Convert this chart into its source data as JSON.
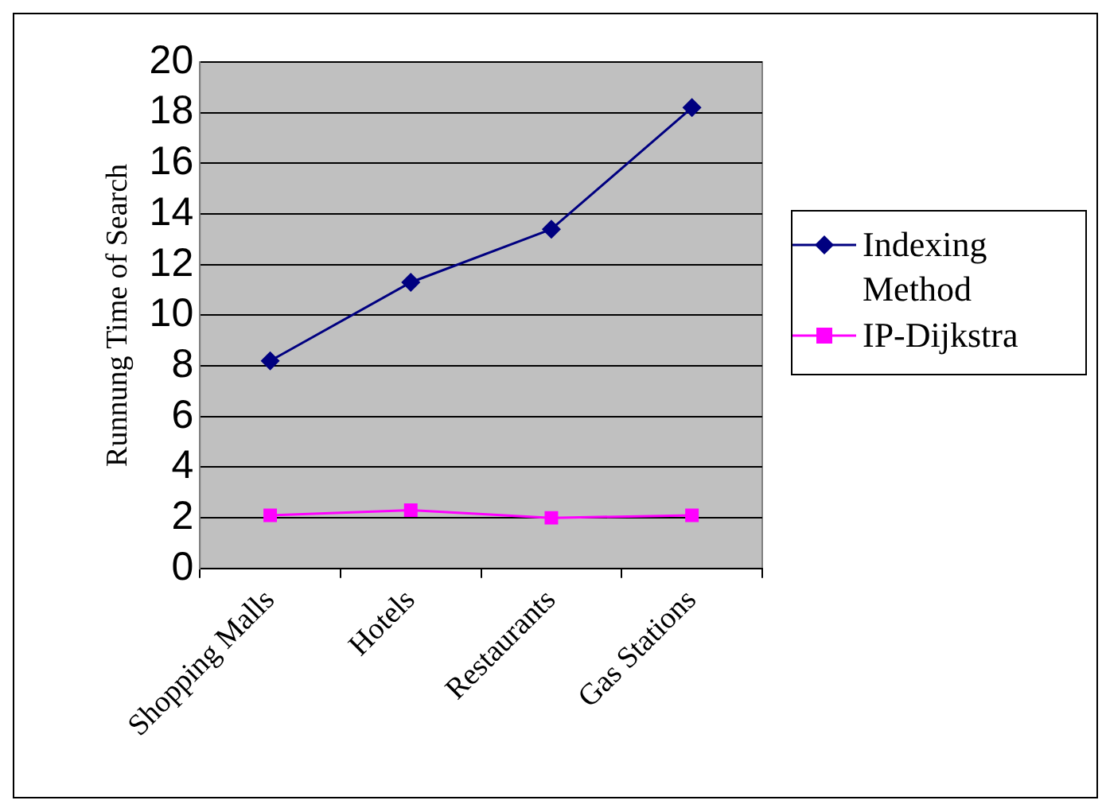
{
  "chart_data": {
    "type": "line",
    "ylabel": "Runnung Time of Search",
    "categories": [
      "Shopping Malls",
      "Hotels",
      "Restaurants",
      "Gas Stations"
    ],
    "series": [
      {
        "name": "Indexing Method",
        "color": "#000080",
        "marker": "diamond",
        "values": [
          8.2,
          11.3,
          13.4,
          18.2
        ]
      },
      {
        "name": "IP-Dijkstra",
        "color": "#ff00ff",
        "marker": "square",
        "values": [
          2.1,
          2.3,
          2.0,
          2.1
        ]
      }
    ],
    "ylim": [
      0,
      20
    ],
    "yticks": [
      0,
      2,
      4,
      6,
      8,
      10,
      12,
      14,
      16,
      18,
      20
    ],
    "grid": "y",
    "legend": "right"
  }
}
